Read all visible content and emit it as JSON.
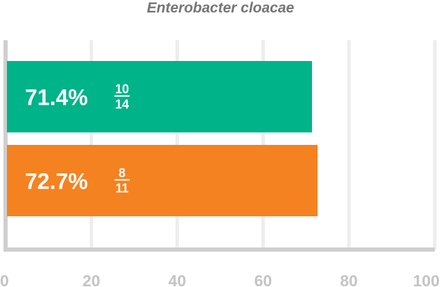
{
  "chart_data": {
    "type": "bar",
    "orientation": "horizontal",
    "title": "Enterobacter cloacae",
    "xlim": [
      0,
      100
    ],
    "x_ticks": [
      "0",
      "20",
      "40",
      "60",
      "80",
      "100"
    ],
    "grid": true,
    "legend": "none",
    "bars": [
      {
        "value": 71.4,
        "label": "71.4%",
        "numerator": "10",
        "denominator": "14",
        "color": "#00b388"
      },
      {
        "value": 72.7,
        "label": "72.7%",
        "numerator": "8",
        "denominator": "11",
        "color": "#f58220"
      }
    ]
  }
}
